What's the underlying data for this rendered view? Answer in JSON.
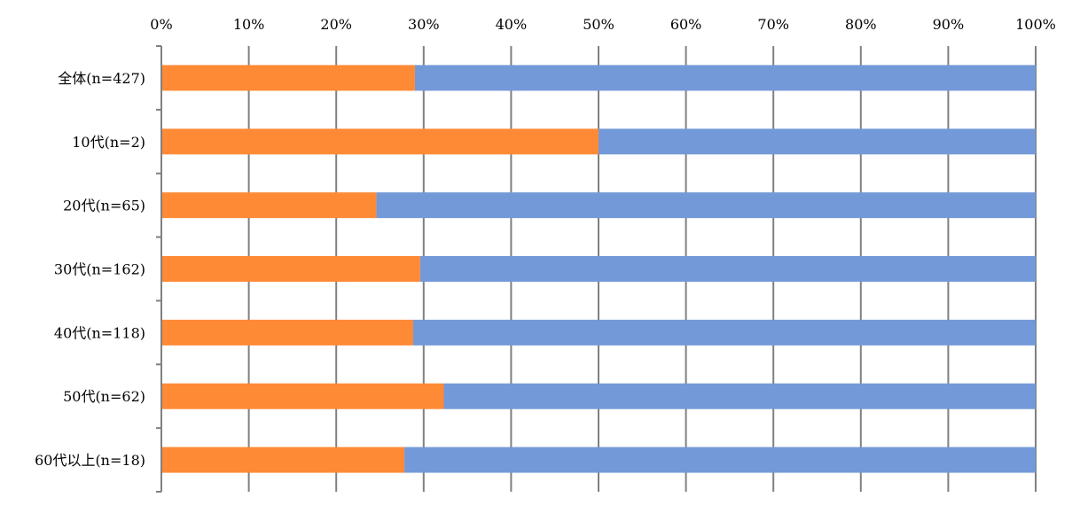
{
  "chart_data": {
    "type": "bar",
    "orientation": "horizontal",
    "stacked": "percent",
    "title": "",
    "xlabel": "",
    "ylabel": "",
    "xlim": [
      0,
      100
    ],
    "x_ticks": [
      "0%",
      "10%",
      "20%",
      "30%",
      "40%",
      "50%",
      "60%",
      "70%",
      "80%",
      "90%",
      "100%"
    ],
    "grid": true,
    "legend": "none",
    "categories": [
      "全体(n=427)",
      "10代(n=2)",
      "20代(n=65)",
      "30代(n=162)",
      "40代(n=118)",
      "50代(n=62)",
      "60代以上(n=18)"
    ],
    "series": [
      {
        "name": "series-1",
        "color": "#FF8A36",
        "values": [
          29.0,
          50.0,
          24.6,
          29.6,
          28.8,
          32.3,
          27.8
        ]
      },
      {
        "name": "series-2",
        "color": "#7399D8",
        "values": [
          71.0,
          50.0,
          75.4,
          70.4,
          71.2,
          67.7,
          72.2
        ]
      }
    ]
  }
}
